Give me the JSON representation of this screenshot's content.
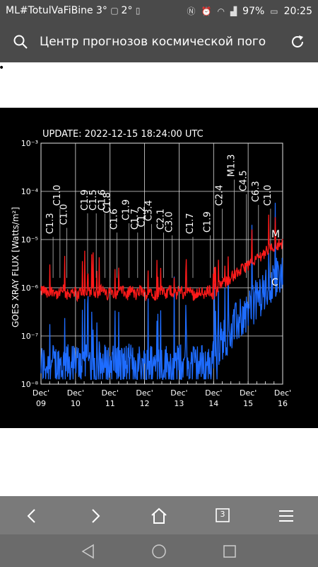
{
  "status_bar": {
    "left_text": "ML#TotulVaFiBine 3°",
    "temp2": "2°",
    "battery_percent": "97%",
    "time": "20:25"
  },
  "browser": {
    "page_title": "Центр прогнозов космической пого",
    "tab_count": "3"
  },
  "chart_data": {
    "type": "line",
    "title": "UPDATE: 2022-12-15 18:24:00 UTC",
    "ylabel": "GOES XRAY FLUX [Watts/m²]",
    "y_scale": "log",
    "ylim": [
      1e-08,
      0.001
    ],
    "yticks": [
      "10⁻⁸",
      "10⁻⁷",
      "10⁻⁶",
      "10⁻⁵",
      "10⁻⁴",
      "10⁻³"
    ],
    "x_ticks": [
      {
        "top": "Dec'",
        "bottom": "09"
      },
      {
        "top": "Dec'",
        "bottom": "10"
      },
      {
        "top": "Dec'",
        "bottom": "11"
      },
      {
        "top": "Dec'",
        "bottom": "12"
      },
      {
        "top": "Dec'",
        "bottom": "13"
      },
      {
        "top": "Dec'",
        "bottom": "14"
      },
      {
        "top": "Dec'",
        "bottom": "15"
      },
      {
        "top": "Dec'",
        "bottom": "16"
      }
    ],
    "right_labels": [
      "M",
      "C"
    ],
    "series": [
      {
        "color": "#ff1a1a",
        "band": "long"
      },
      {
        "color": "#1e6cff",
        "band": "short"
      }
    ],
    "flare_labels": [
      {
        "text": "C1.3",
        "day": 9.35,
        "level": 1.3e-05
      },
      {
        "text": "C1.0",
        "day": 9.55,
        "level": 5e-05
      },
      {
        "text": "C1.0",
        "day": 9.75,
        "level": 2e-05
      },
      {
        "text": "C1.9",
        "day": 10.35,
        "level": 4e-05
      },
      {
        "text": "C1.5",
        "day": 10.6,
        "level": 4e-05
      },
      {
        "text": "C1.6",
        "day": 10.85,
        "level": 4e-05
      },
      {
        "text": "C1.8",
        "day": 11.0,
        "level": 3.5e-05
      },
      {
        "text": "C1.6",
        "day": 11.2,
        "level": 1.6e-05
      },
      {
        "text": "C1.9",
        "day": 11.55,
        "level": 2.5e-05
      },
      {
        "text": "C1.7",
        "day": 11.8,
        "level": 1.6e-05
      },
      {
        "text": "C1.2",
        "day": 12.0,
        "level": 1.8e-05
      },
      {
        "text": "C3.4",
        "day": 12.2,
        "level": 2.4e-05
      },
      {
        "text": "C2.1",
        "day": 12.55,
        "level": 1.6e-05
      },
      {
        "text": "C3.0",
        "day": 12.8,
        "level": 1.4e-05
      },
      {
        "text": "C1.7",
        "day": 13.4,
        "level": 1.3e-05
      },
      {
        "text": "C1.9",
        "day": 13.9,
        "level": 1.4e-05
      },
      {
        "text": "C2.4",
        "day": 14.25,
        "level": 5e-05
      },
      {
        "text": "M1.3",
        "day": 14.6,
        "level": 0.0002
      },
      {
        "text": "C4.5",
        "day": 14.95,
        "level": 0.0001
      },
      {
        "text": "C6.3",
        "day": 15.3,
        "level": 6e-05
      },
      {
        "text": "C1.0",
        "day": 15.65,
        "level": 5e-05
      }
    ]
  }
}
